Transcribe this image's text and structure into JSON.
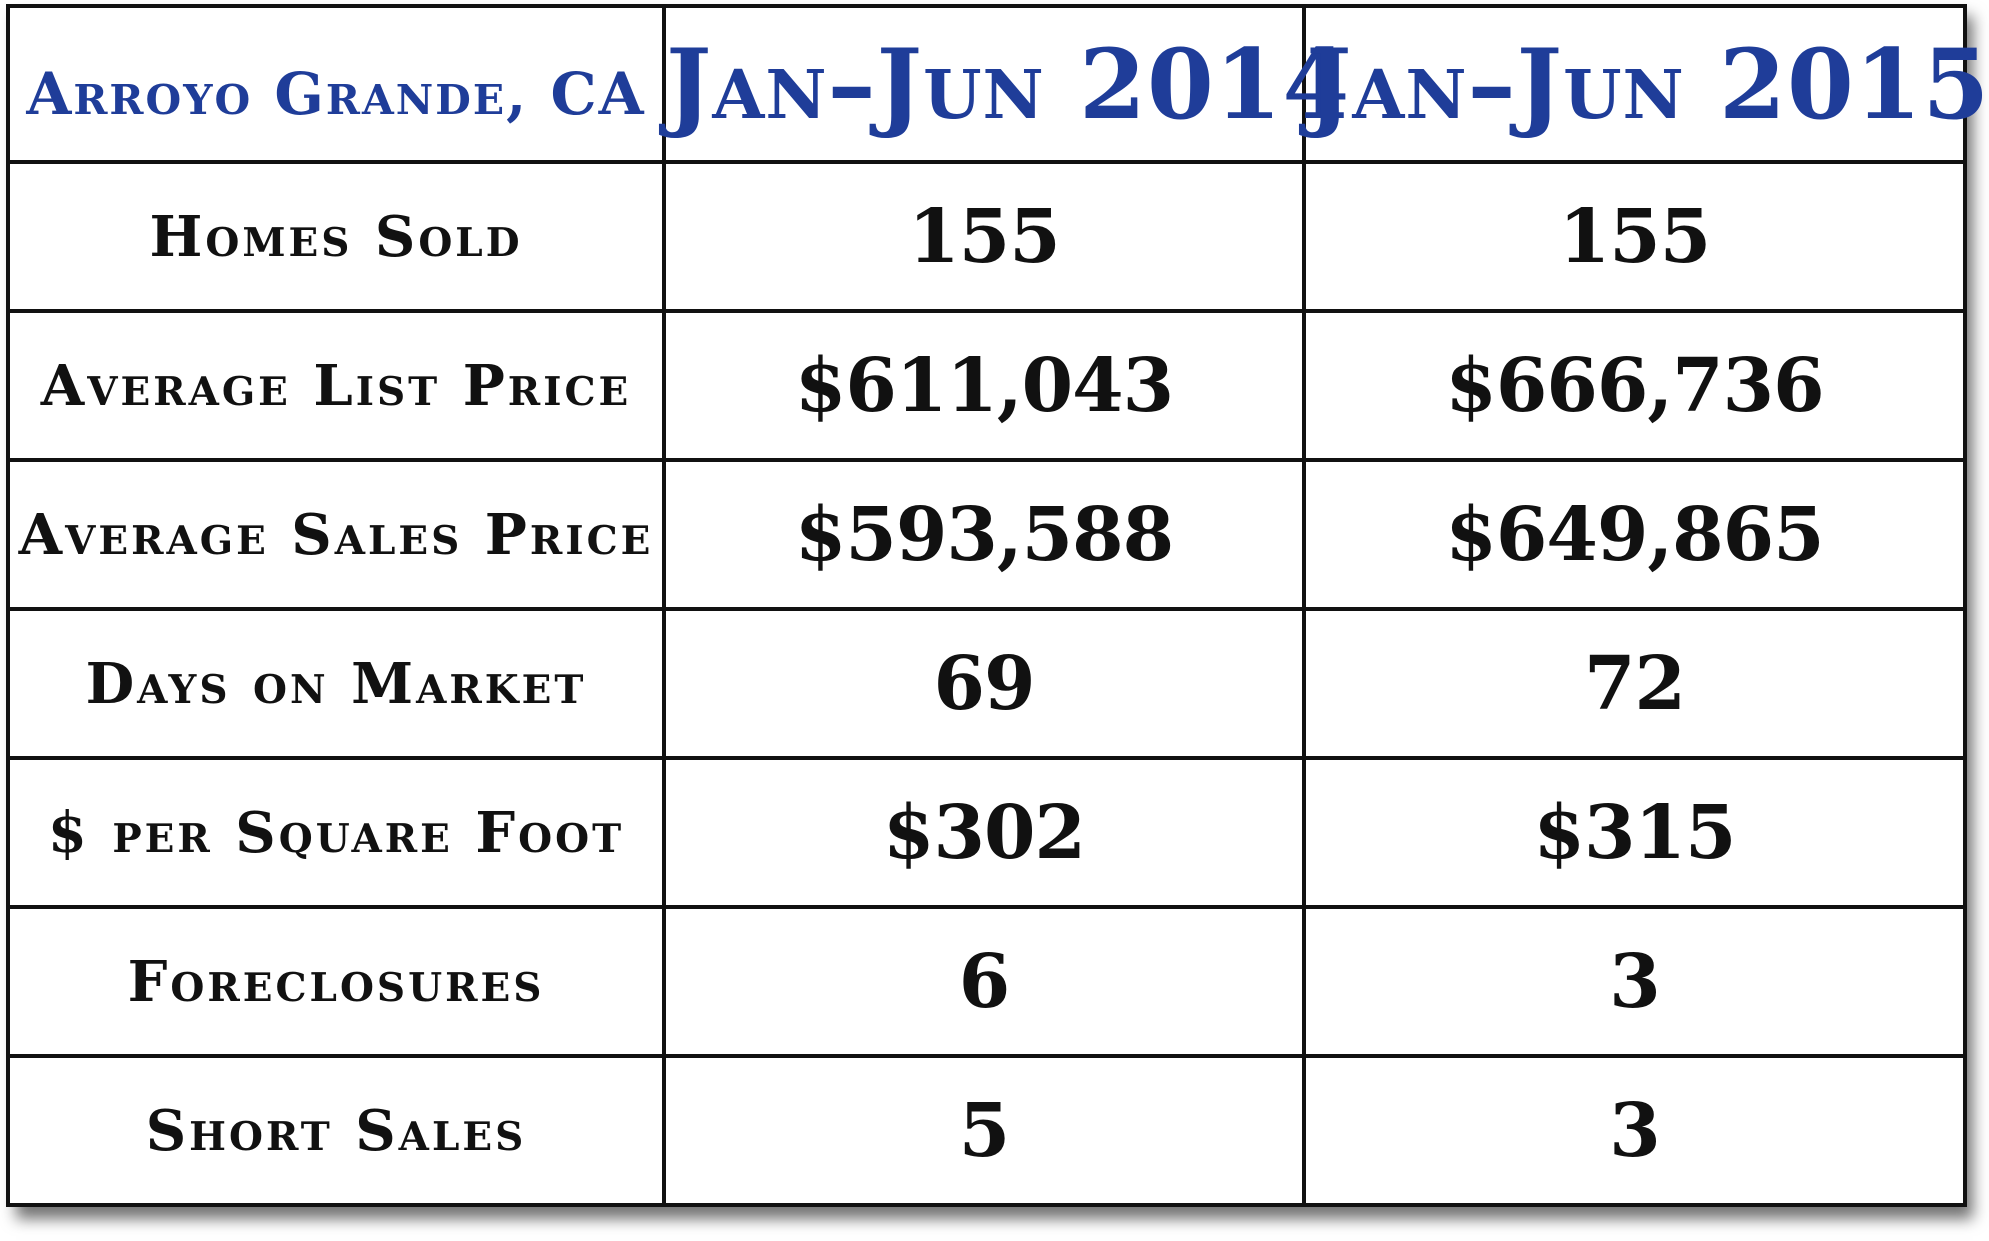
{
  "table": {
    "location": "Arroyo Grande, CA",
    "columns": [
      "Jan–Jun 2014",
      "Jan–Jun 2015"
    ],
    "rows": [
      {
        "metric": "Homes Sold",
        "values": [
          "155",
          "155"
        ]
      },
      {
        "metric": "Average List Price",
        "values": [
          "$611,043",
          "$666,736"
        ]
      },
      {
        "metric": "Average Sales Price",
        "values": [
          "$593,588",
          "$649,865"
        ]
      },
      {
        "metric": "Days on Market",
        "values": [
          "69",
          "72"
        ]
      },
      {
        "metric": "$ per Square Foot",
        "values": [
          "$302",
          "$315"
        ]
      },
      {
        "metric": "Foreclosures",
        "values": [
          "6",
          "3"
        ]
      },
      {
        "metric": "Short Sales",
        "values": [
          "5",
          "3"
        ]
      }
    ]
  },
  "colors": {
    "header_text": "#1f3d99",
    "body_text": "#111111",
    "border": "#111111",
    "background": "#ffffff"
  }
}
